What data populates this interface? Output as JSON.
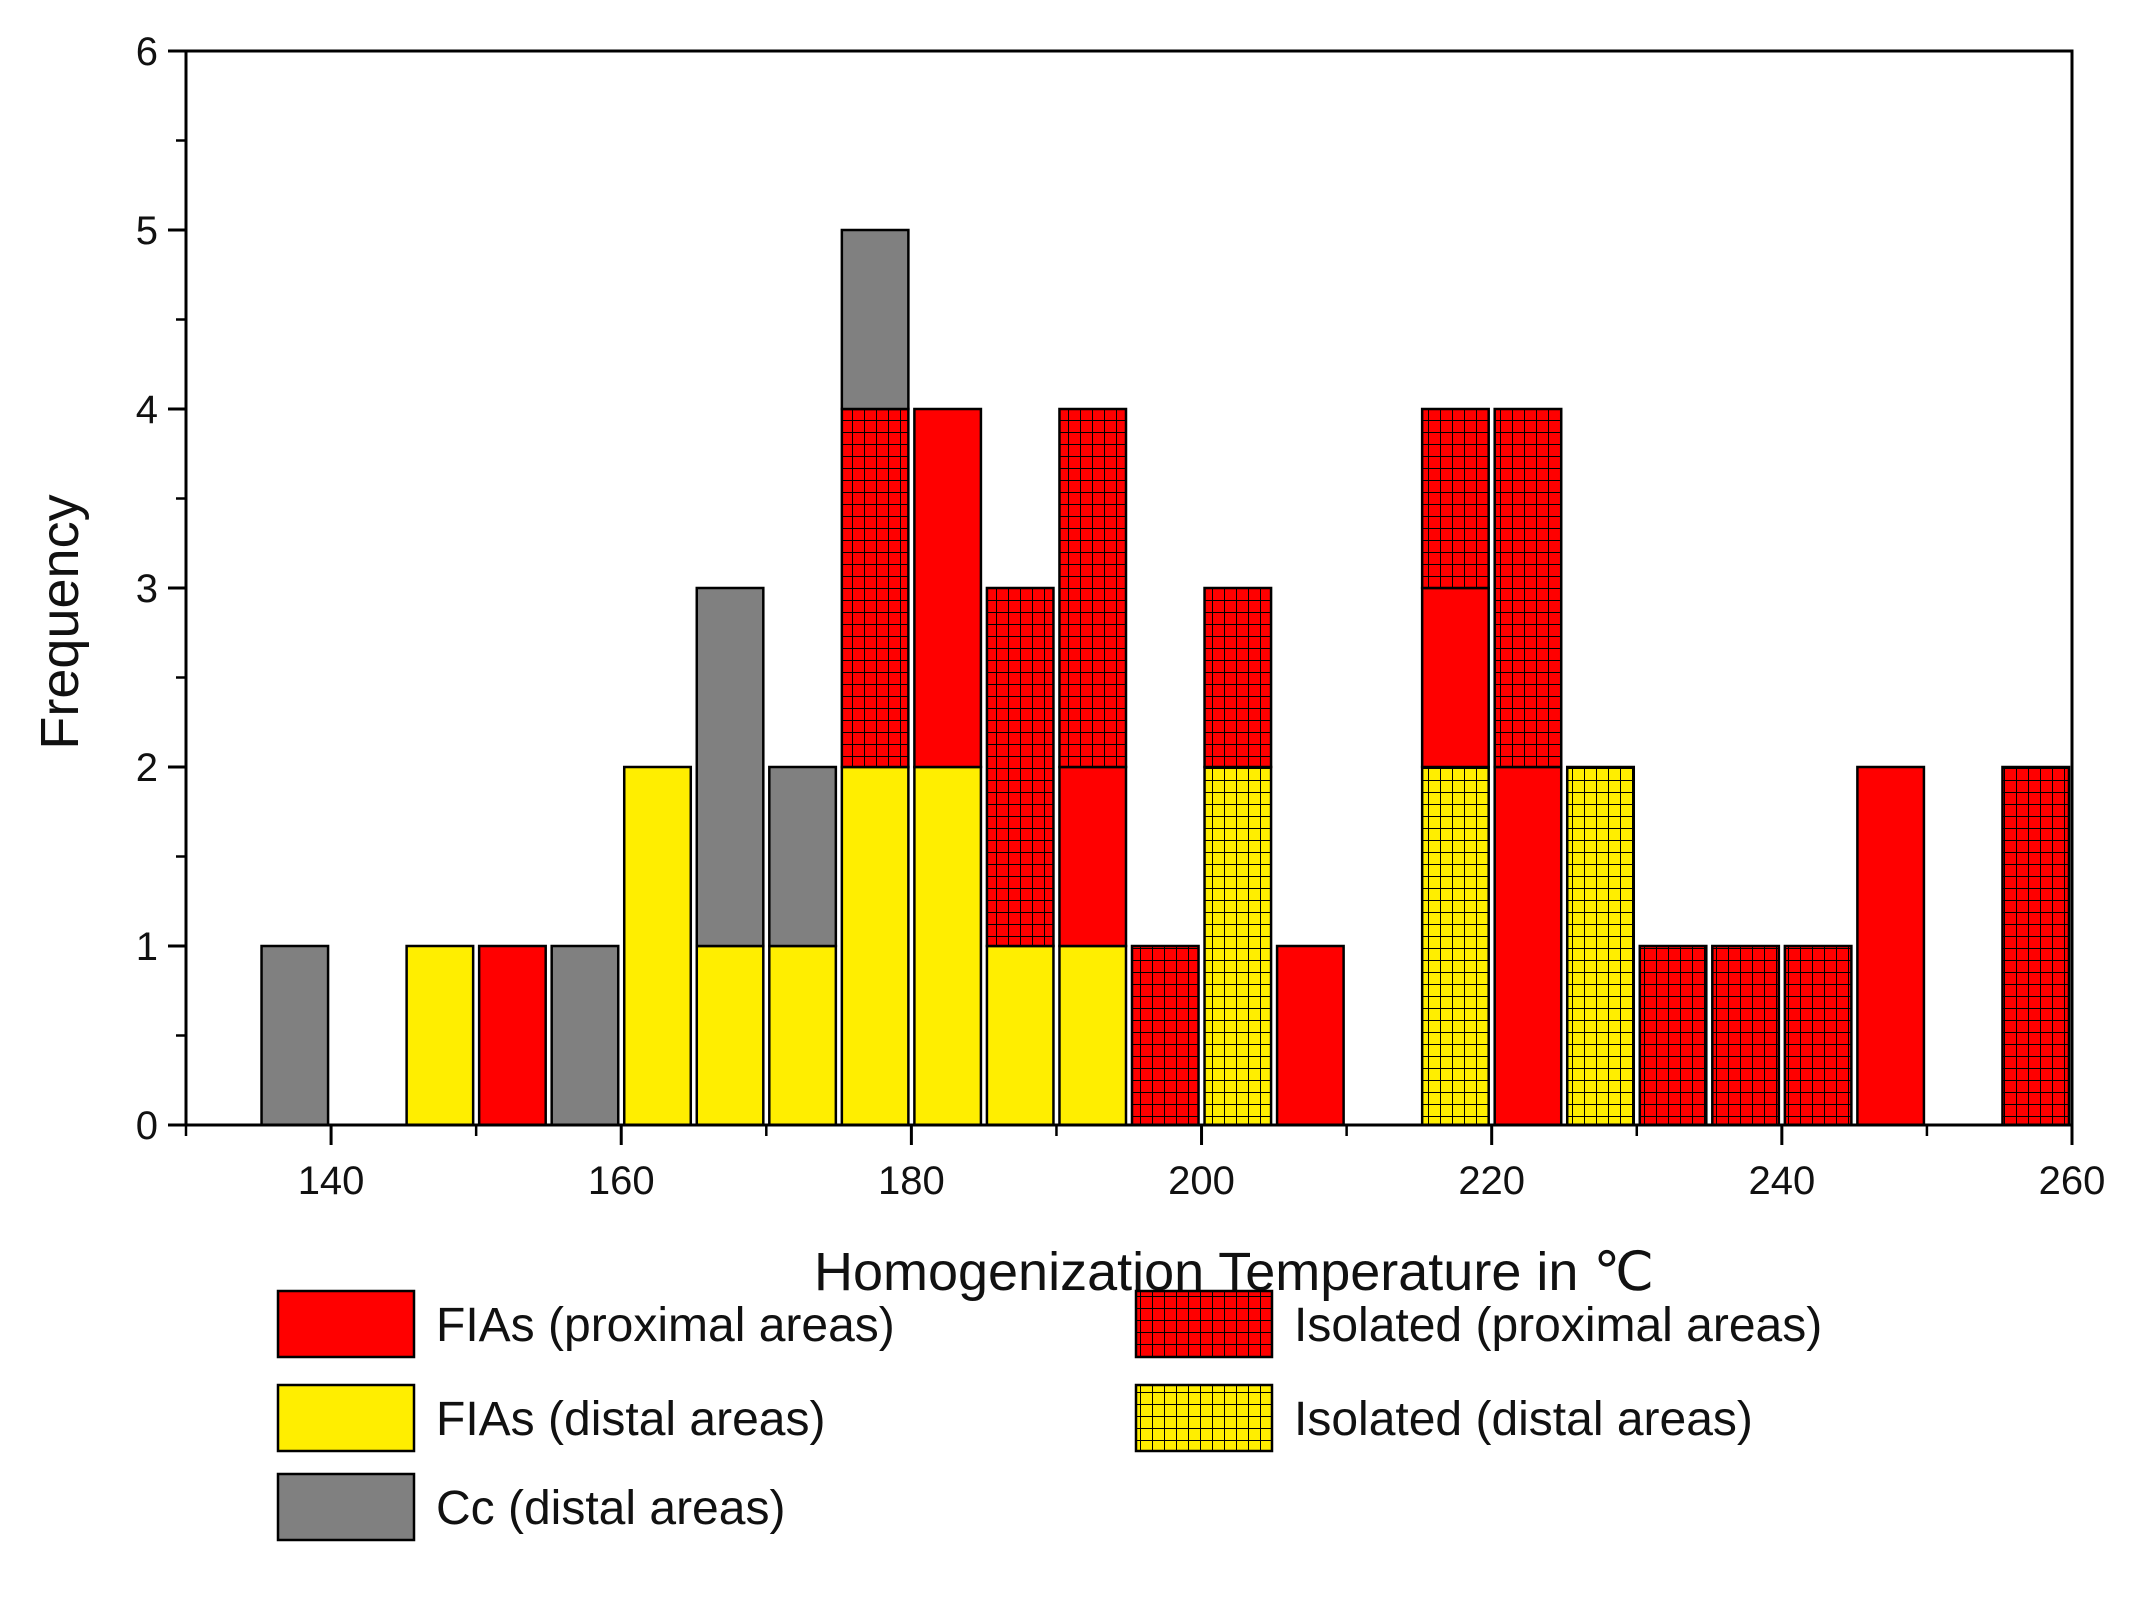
{
  "chart_data": {
    "type": "bar",
    "stacked": true,
    "title": "",
    "xlabel": "Homogenization Temperature in ℃",
    "ylabel": "Frequency",
    "xlim": [
      130,
      260
    ],
    "ylim": [
      0,
      6
    ],
    "bin_width": 5,
    "xticks": [
      140,
      160,
      180,
      200,
      220,
      240,
      260
    ],
    "yticks": [
      0,
      1,
      2,
      3,
      4,
      5,
      6
    ],
    "grid": false,
    "legend_position": "bottom",
    "categories": {
      "fias_proximal": {
        "label": "FIAs (proximal areas)",
        "fill": "#ff0000",
        "hatched": false,
        "legend_column": 0,
        "legend_row": 0
      },
      "fias_distal": {
        "label": "FIAs (distal areas)",
        "fill": "#ffee00",
        "hatched": false,
        "legend_column": 0,
        "legend_row": 1
      },
      "cc_distal": {
        "label": "Cc (distal areas)",
        "fill": "#808080",
        "hatched": false,
        "legend_column": 0,
        "legend_row": 2
      },
      "isolated_proximal": {
        "label": "Isolated (proximal areas)",
        "fill": "#ff0000",
        "hatched": true,
        "legend_column": 1,
        "legend_row": 0
      },
      "isolated_distal": {
        "label": "Isolated (distal areas)",
        "fill": "#ffee00",
        "hatched": true,
        "legend_column": 1,
        "legend_row": 1
      }
    },
    "bins": [
      {
        "x0": 135,
        "x1": 140,
        "segments": [
          {
            "category": "cc_distal",
            "count": 1
          }
        ]
      },
      {
        "x0": 145,
        "x1": 150,
        "segments": [
          {
            "category": "fias_distal",
            "count": 1
          }
        ]
      },
      {
        "x0": 150,
        "x1": 155,
        "segments": [
          {
            "category": "fias_proximal",
            "count": 1
          }
        ]
      },
      {
        "x0": 155,
        "x1": 160,
        "segments": [
          {
            "category": "cc_distal",
            "count": 1
          }
        ]
      },
      {
        "x0": 160,
        "x1": 165,
        "segments": [
          {
            "category": "fias_distal",
            "count": 2
          }
        ]
      },
      {
        "x0": 165,
        "x1": 170,
        "segments": [
          {
            "category": "fias_distal",
            "count": 1
          },
          {
            "category": "cc_distal",
            "count": 2
          }
        ]
      },
      {
        "x0": 170,
        "x1": 175,
        "segments": [
          {
            "category": "fias_distal",
            "count": 1
          },
          {
            "category": "cc_distal",
            "count": 1
          }
        ]
      },
      {
        "x0": 175,
        "x1": 180,
        "segments": [
          {
            "category": "fias_distal",
            "count": 2
          },
          {
            "category": "isolated_proximal",
            "count": 2
          },
          {
            "category": "cc_distal",
            "count": 1
          }
        ]
      },
      {
        "x0": 180,
        "x1": 185,
        "segments": [
          {
            "category": "fias_distal",
            "count": 2
          },
          {
            "category": "fias_proximal",
            "count": 2
          }
        ]
      },
      {
        "x0": 185,
        "x1": 190,
        "segments": [
          {
            "category": "fias_distal",
            "count": 1
          },
          {
            "category": "isolated_proximal",
            "count": 2
          }
        ]
      },
      {
        "x0": 190,
        "x1": 195,
        "segments": [
          {
            "category": "fias_distal",
            "count": 1
          },
          {
            "category": "fias_proximal",
            "count": 1
          },
          {
            "category": "isolated_proximal",
            "count": 2
          }
        ]
      },
      {
        "x0": 195,
        "x1": 200,
        "segments": [
          {
            "category": "isolated_proximal",
            "count": 1
          }
        ]
      },
      {
        "x0": 200,
        "x1": 205,
        "segments": [
          {
            "category": "isolated_distal",
            "count": 2
          },
          {
            "category": "isolated_proximal",
            "count": 1
          }
        ]
      },
      {
        "x0": 205,
        "x1": 210,
        "segments": [
          {
            "category": "fias_proximal",
            "count": 1
          }
        ]
      },
      {
        "x0": 215,
        "x1": 220,
        "segments": [
          {
            "category": "isolated_distal",
            "count": 2
          },
          {
            "category": "fias_proximal",
            "count": 1
          },
          {
            "category": "isolated_proximal",
            "count": 1
          }
        ]
      },
      {
        "x0": 220,
        "x1": 225,
        "segments": [
          {
            "category": "fias_proximal",
            "count": 2
          },
          {
            "category": "isolated_proximal",
            "count": 2
          }
        ]
      },
      {
        "x0": 225,
        "x1": 230,
        "segments": [
          {
            "category": "isolated_distal",
            "count": 2
          }
        ]
      },
      {
        "x0": 230,
        "x1": 235,
        "segments": [
          {
            "category": "isolated_proximal",
            "count": 1
          }
        ]
      },
      {
        "x0": 235,
        "x1": 240,
        "segments": [
          {
            "category": "isolated_proximal",
            "count": 1
          }
        ]
      },
      {
        "x0": 240,
        "x1": 245,
        "segments": [
          {
            "category": "isolated_proximal",
            "count": 1
          }
        ]
      },
      {
        "x0": 245,
        "x1": 250,
        "segments": [
          {
            "category": "fias_proximal",
            "count": 2
          }
        ]
      },
      {
        "x0": 255,
        "x1": 260,
        "segments": [
          {
            "category": "isolated_proximal",
            "count": 2
          }
        ]
      }
    ]
  }
}
